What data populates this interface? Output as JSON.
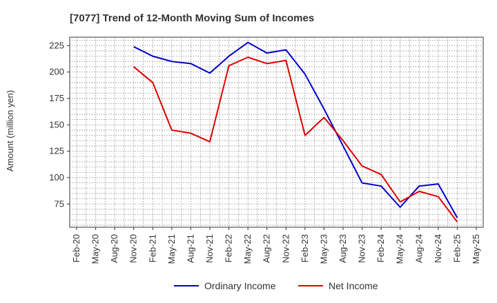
{
  "chart_data": {
    "type": "line",
    "title": "[7077]  Trend of 12-Month Moving Sum of Incomes",
    "xlabel": "",
    "ylabel": "Amount (million yen)",
    "categories": [
      "Feb-20",
      "May-20",
      "Aug-20",
      "Nov-20",
      "Feb-21",
      "May-21",
      "Aug-21",
      "Nov-21",
      "Feb-22",
      "May-22",
      "Aug-22",
      "Nov-22",
      "Feb-23",
      "May-23",
      "Aug-23",
      "Nov-23",
      "Feb-24",
      "May-24",
      "Aug-24",
      "Nov-24",
      "Feb-25",
      "May-25"
    ],
    "yticks": [
      75,
      100,
      125,
      150,
      175,
      200,
      225
    ],
    "ylim": [
      53,
      233
    ],
    "grid": true,
    "legend_position": "bottom-center",
    "series": [
      {
        "name": "Ordinary Income",
        "color": "#0000cc",
        "values": [
          null,
          null,
          null,
          224,
          215,
          210,
          208,
          199,
          215,
          228,
          218,
          221,
          198,
          165,
          130,
          95,
          92,
          72,
          92,
          94,
          62,
          null
        ]
      },
      {
        "name": "Net Income",
        "color": "#e00000",
        "values": [
          null,
          null,
          null,
          205,
          190,
          145,
          142,
          134,
          206,
          214,
          208,
          211,
          140,
          157,
          135,
          111,
          103,
          77,
          87,
          82,
          58,
          null
        ]
      }
    ]
  }
}
